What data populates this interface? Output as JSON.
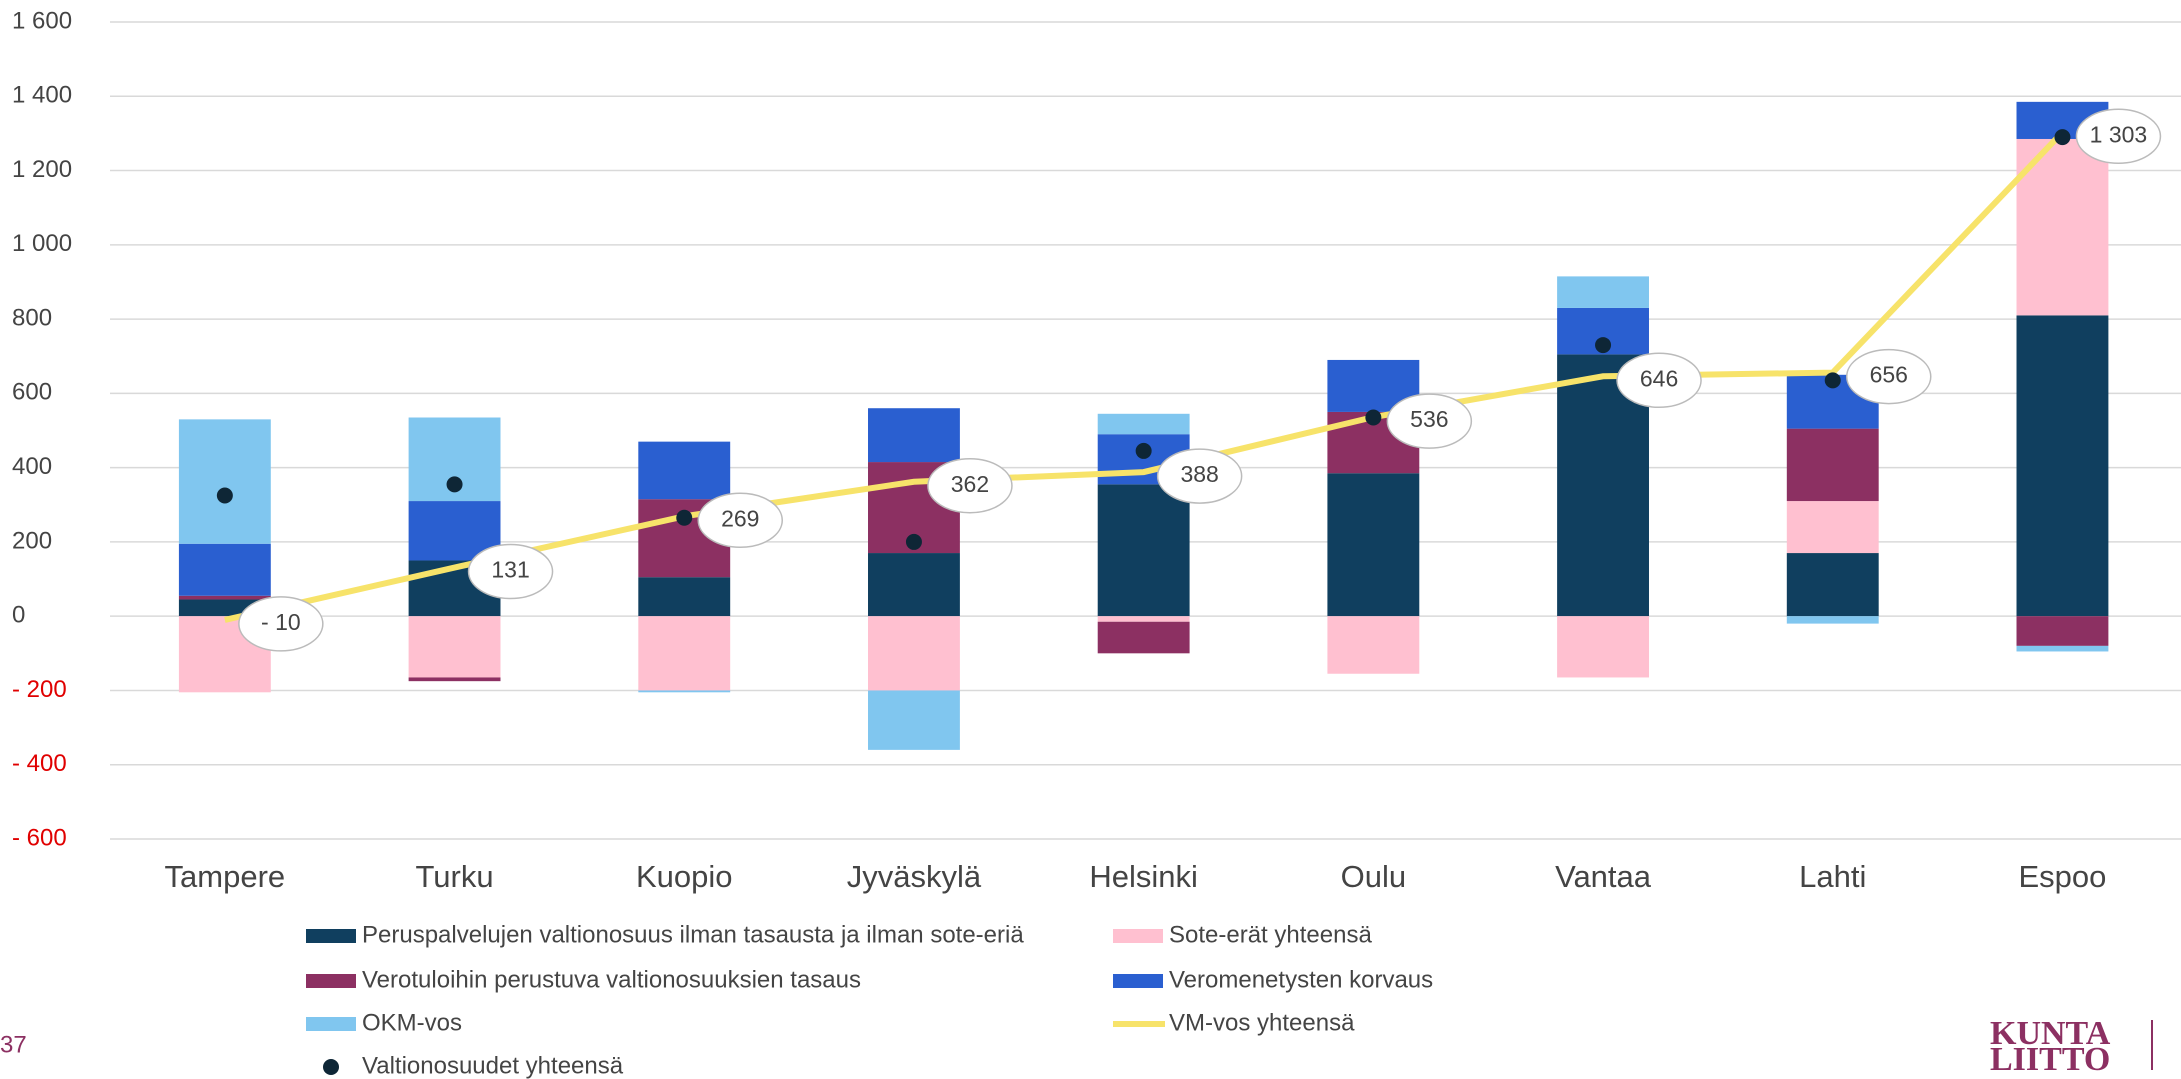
{
  "chart_data": {
    "type": "bar",
    "categories": [
      "Tampere",
      "Turku",
      "Kuopio",
      "Jyväskylä",
      "Helsinki",
      "Oulu",
      "Vantaa",
      "Lahti",
      "Espoo"
    ],
    "series": [
      {
        "name": "Peruspalvelujen valtionosuus ilman tasausta ja ilman sote-eriä",
        "type": "bar",
        "color": "#103f5f",
        "values": [
          45,
          150,
          105,
          170,
          355,
          385,
          705,
          170,
          810
        ]
      },
      {
        "name": "Sote-erät yhteensä",
        "type": "bar",
        "color": "#ffc0d0",
        "values": [
          -205,
          -165,
          -200,
          -200,
          -15,
          -155,
          -165,
          140,
          475
        ]
      },
      {
        "name": "Verotuloihin perustuva valtionosuuksien tasaus",
        "type": "bar",
        "color": "#8c3062",
        "values": [
          10,
          -10,
          210,
          245,
          -85,
          165,
          0,
          195,
          -80
        ]
      },
      {
        "name": "Veromenetysten korvaus",
        "type": "bar",
        "color": "#2a5fd0",
        "values": [
          140,
          160,
          155,
          145,
          135,
          140,
          125,
          145,
          100
        ]
      },
      {
        "name": "OKM-vos",
        "type": "bar",
        "color": "#80c6ef",
        "values": [
          335,
          225,
          -5,
          -160,
          55,
          0,
          85,
          -20,
          -15
        ]
      },
      {
        "name": "VM-vos yhteensä",
        "type": "line",
        "color": "#f7e36a",
        "values": [
          -10,
          131,
          269,
          362,
          388,
          536,
          646,
          656,
          1303
        ],
        "value_labels": [
          "- 10",
          "131",
          "269",
          "362",
          "388",
          "536",
          "646",
          "656",
          "1 303"
        ]
      },
      {
        "name": "Valtionosuudet yhteensä",
        "type": "scatter",
        "color": "#0e2636",
        "values": [
          325,
          355,
          265,
          200,
          445,
          535,
          730,
          635,
          1290
        ]
      }
    ],
    "ylim": [
      -600,
      1600
    ],
    "yticks": [
      {
        "value": -600,
        "label": "- 600"
      },
      {
        "value": -400,
        "label": "- 400"
      },
      {
        "value": -200,
        "label": "- 200"
      },
      0,
      200,
      400,
      600,
      800,
      {
        "value": 1000,
        "label": "1 000"
      },
      {
        "value": 1200,
        "label": "1 200"
      },
      {
        "value": 1400,
        "label": "1 400"
      },
      {
        "value": 1600,
        "label": "1 600"
      }
    ],
    "grid": true
  },
  "page_number": "37",
  "logo": [
    "KUNTA",
    "LIITTO"
  ]
}
